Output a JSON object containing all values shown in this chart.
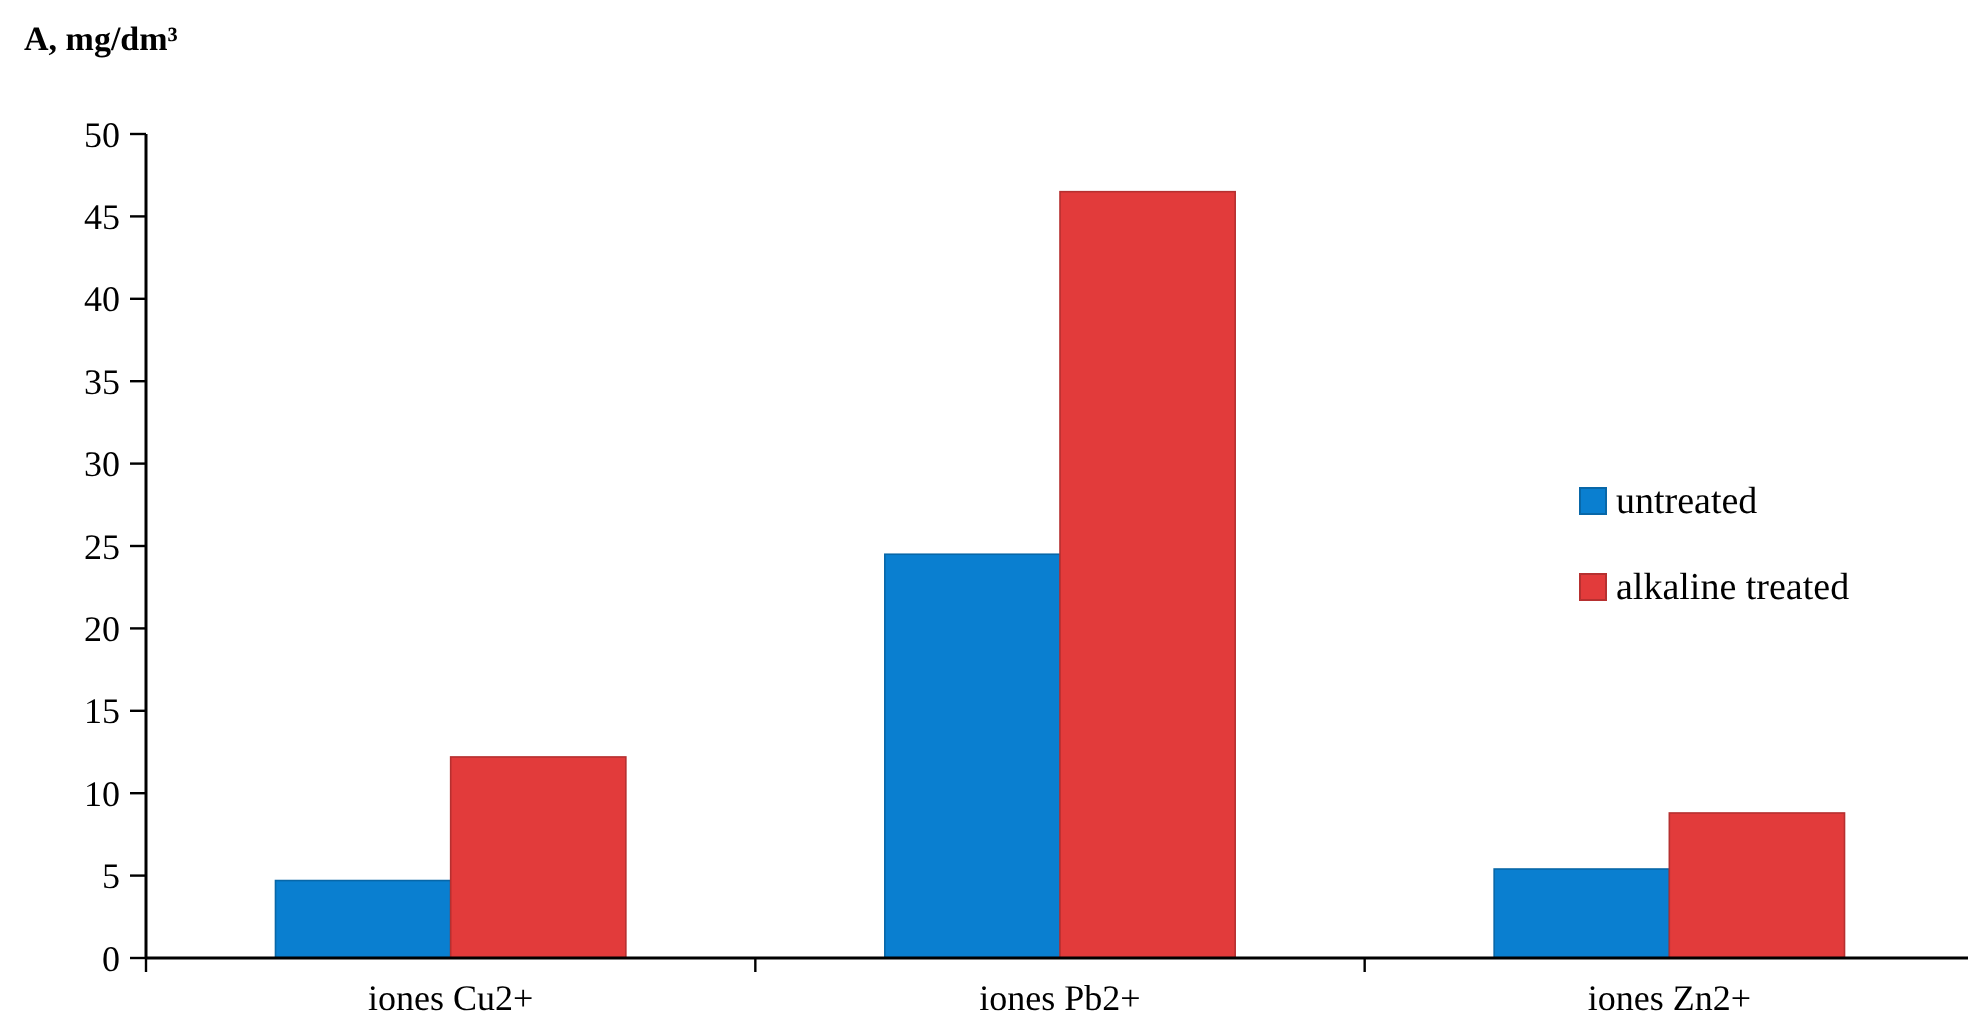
{
  "chart_data": {
    "type": "bar",
    "ylabel": "A, mg/dm³",
    "categories": [
      "iones Cu2+",
      "iones Pb2+",
      "iones Zn2+"
    ],
    "series": [
      {
        "name": "untreated",
        "color": "#0a7fd0",
        "values": [
          4.7,
          24.5,
          5.4
        ]
      },
      {
        "name": "alkaline treated",
        "color": "#e23b3b",
        "values": [
          12.2,
          46.5,
          8.8
        ]
      }
    ],
    "ylim": [
      0,
      50
    ],
    "yticks": [
      0,
      5,
      10,
      15,
      20,
      25,
      30,
      35,
      40,
      45,
      50
    ],
    "grid": false,
    "legend": "right"
  }
}
